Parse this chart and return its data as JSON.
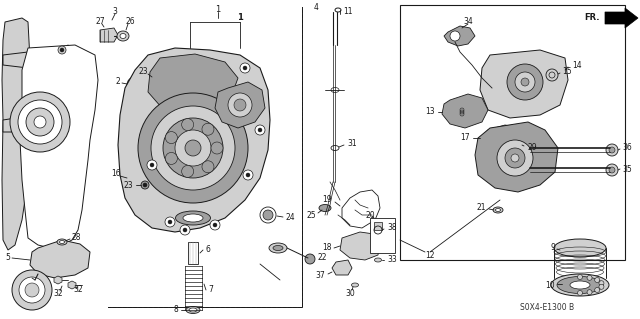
{
  "bg_color": "#ffffff",
  "diagram_code": "S0X4-E1300 B",
  "fr_label": "FR.",
  "fig_width": 6.4,
  "fig_height": 3.19,
  "dpi": 100,
  "line_color": "#1a1a1a",
  "gray_light": "#d0d0d0",
  "gray_mid": "#a0a0a0",
  "gray_dark": "#707070"
}
